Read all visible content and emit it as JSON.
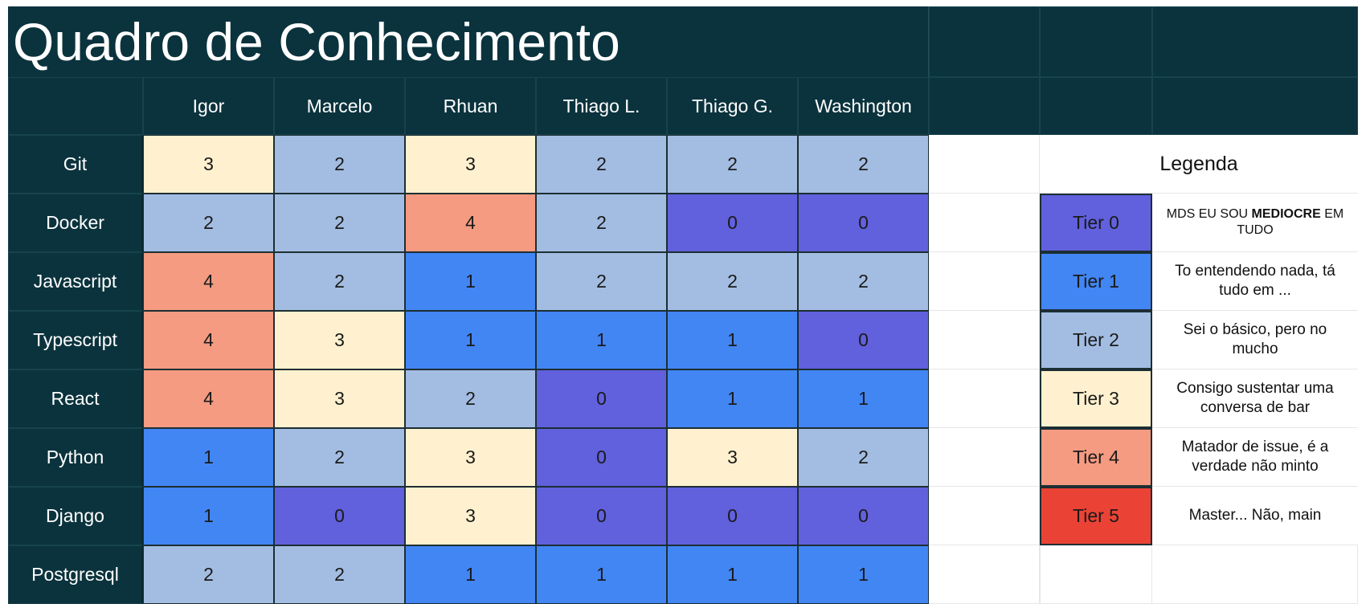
{
  "title": "Quadro de Conhecimento",
  "colors": {
    "header_bg": "#0b333d",
    "tier0": "#6160dd",
    "tier1": "#4286f4",
    "tier2": "#a3bde2",
    "tier3": "#fff1cf",
    "tier4": "#f49b82",
    "tier5": "#ea4335"
  },
  "people": [
    "Igor",
    "Marcelo",
    "Rhuan",
    "Thiago L.",
    "Thiago G.",
    "Washington"
  ],
  "skills": [
    {
      "name": "Git",
      "scores": [
        "3",
        "2",
        "3",
        "2",
        "2",
        "2"
      ]
    },
    {
      "name": "Docker",
      "scores": [
        "2",
        "2",
        "4",
        "2",
        "0",
        "0"
      ]
    },
    {
      "name": "Javascript",
      "scores": [
        "4",
        "2",
        "1",
        "2",
        "2",
        "2"
      ]
    },
    {
      "name": "Typescript",
      "scores": [
        "4",
        "3",
        "1",
        "1",
        "1",
        "0"
      ]
    },
    {
      "name": "React",
      "scores": [
        "4",
        "3",
        "2",
        "0",
        "1",
        "1"
      ]
    },
    {
      "name": "Python",
      "scores": [
        "1",
        "2",
        "3",
        "0",
        "3",
        "2"
      ]
    },
    {
      "name": "Django",
      "scores": [
        "1",
        "0",
        "3",
        "0",
        "0",
        "0"
      ]
    },
    {
      "name": "Postgresql",
      "scores": [
        "2",
        "2",
        "1",
        "1",
        "1",
        "1"
      ]
    }
  ],
  "legend": {
    "title": "Legenda",
    "tiers": [
      {
        "label": "Tier 0",
        "desc_pre": "MDS EU SOU ",
        "desc_bold": "MEDIOCRE",
        "desc_post": " EM TUDO"
      },
      {
        "label": "Tier 1",
        "desc": "To entendendo nada, tá tudo em ..."
      },
      {
        "label": "Tier 2",
        "desc": "Sei o básico, pero no mucho"
      },
      {
        "label": "Tier 3",
        "desc": "Consigo sustentar uma conversa de bar"
      },
      {
        "label": "Tier 4",
        "desc": "Matador de issue, é a verdade não minto"
      },
      {
        "label": "Tier 5",
        "desc": "Master... Não, main"
      }
    ]
  }
}
